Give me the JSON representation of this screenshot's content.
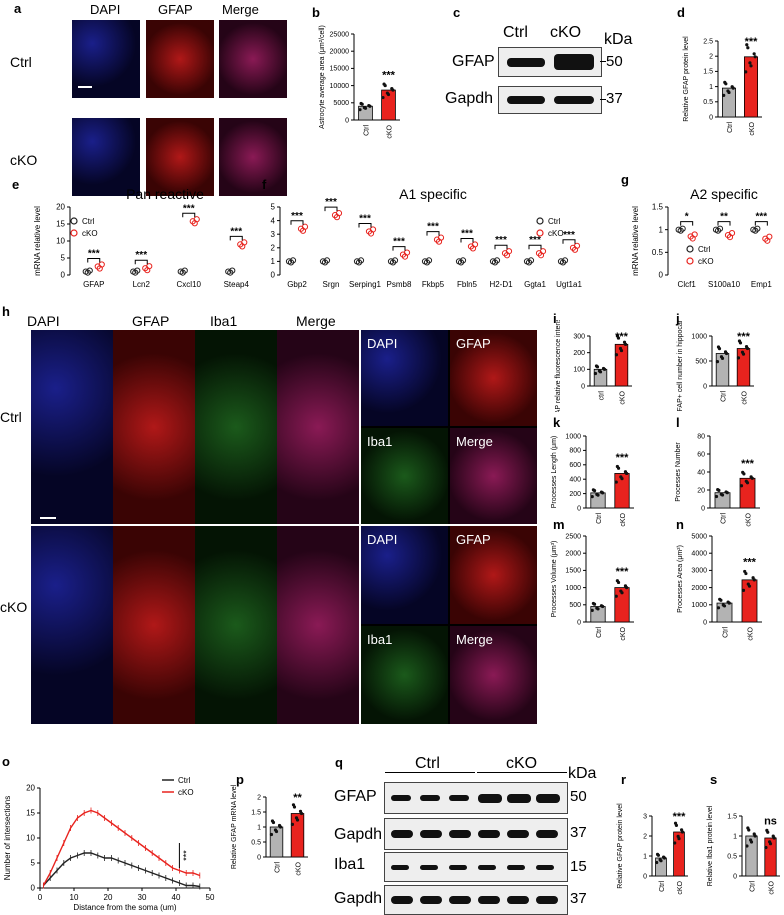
{
  "panels": {
    "a": "a",
    "b": "b",
    "c": "c",
    "d": "d",
    "e": "e",
    "f": "f",
    "g": "g",
    "h": "h",
    "i": "i",
    "j": "j",
    "k": "k",
    "l": "l",
    "m": "m",
    "n": "n",
    "o": "o",
    "p": "p",
    "q": "q",
    "r": "r",
    "s": "s"
  },
  "groups": {
    "ctrl": "Ctrl",
    "cko": "cKO",
    "ctrl_lower": "ctrl",
    "cko_lower": "cKO"
  },
  "channels": {
    "dapi": "DAPI",
    "gfap": "GFAP",
    "merge": "Merge",
    "iba1": "Iba1",
    "gapdh": "Gapdh"
  },
  "blot": {
    "kda": "kDa",
    "mw50": "50",
    "mw37": "37",
    "mw15": "15"
  },
  "titles": {
    "pan": "Pan reactive",
    "a1": "A1 specific",
    "a2": "A2 specific"
  },
  "colors": {
    "ctrl_bar": "#b3b3b3",
    "cko_bar": "#e8231e",
    "ctrl_line": "#222222",
    "cko_line": "#e8231e"
  },
  "sig": {
    "three": "***",
    "two": "**",
    "one": "*",
    "ns": "ns"
  },
  "chart_data": [
    {
      "id": "b",
      "type": "bar",
      "ylabel": "Astrocyte average area (μm²/cell)",
      "categories": [
        "Ctrl",
        "cKO"
      ],
      "values": [
        4000,
        8700
      ],
      "ylim": [
        0,
        25000
      ],
      "yticks": [
        0,
        5000,
        10000,
        15000,
        20000,
        25000
      ],
      "sig": "***"
    },
    {
      "id": "d",
      "type": "bar",
      "ylabel": "Relative GFAP protein level",
      "categories": [
        "Ctrl",
        "cKO"
      ],
      "values": [
        0.95,
        1.98
      ],
      "ylim": [
        0,
        2.5
      ],
      "yticks": [
        0.0,
        0.5,
        1.0,
        1.5,
        2.0,
        2.5
      ],
      "sig": "***"
    },
    {
      "id": "e",
      "type": "scatter",
      "title": "Pan reactive",
      "ylabel": "mRNA relative level",
      "categories": [
        "GFAP",
        "Lcn2",
        "Cxcl10",
        "Steap4"
      ],
      "series": [
        {
          "name": "Ctrl",
          "values": [
            1,
            1,
            1,
            1
          ]
        },
        {
          "name": "cKO",
          "values": [
            2.5,
            2,
            15.8,
            9
          ]
        }
      ],
      "ylim": [
        0,
        20
      ],
      "yticks": [
        0,
        5,
        10,
        15,
        20
      ],
      "sig": [
        "***",
        "***",
        "***",
        "***"
      ]
    },
    {
      "id": "f",
      "type": "scatter",
      "title": "A1 specific",
      "ylabel": "mRNA relative level",
      "categories": [
        "Gbp2",
        "Srgn",
        "Serping1",
        "Psmb8",
        "Fkbp5",
        "Fbln5",
        "H2-D1",
        "Ggta1",
        "Ugt1a1"
      ],
      "series": [
        {
          "name": "Ctrl",
          "values": [
            1,
            1,
            1,
            1,
            1,
            1,
            1,
            1,
            1
          ]
        },
        {
          "name": "cKO",
          "values": [
            3.4,
            4.4,
            3.2,
            1.5,
            2.6,
            2.1,
            1.6,
            1.6,
            2
          ]
        }
      ],
      "ylim": [
        0,
        5
      ],
      "yticks": [
        0,
        1,
        2,
        3,
        4,
        5
      ],
      "sig": [
        "***",
        "***",
        "***",
        "***",
        "***",
        "***",
        "***",
        "***",
        "***"
      ]
    },
    {
      "id": "g",
      "type": "scatter",
      "title": "A2 specific",
      "ylabel": "mRNA relative level",
      "categories": [
        "Clcf1",
        "S100a10",
        "Emp1"
      ],
      "series": [
        {
          "name": "Ctrl",
          "values": [
            1,
            1,
            1
          ]
        },
        {
          "name": "cKO",
          "values": [
            0.85,
            0.88,
            0.8
          ]
        }
      ],
      "ylim": [
        0,
        1.5
      ],
      "yticks": [
        0.0,
        0.5,
        1.0,
        1.5
      ],
      "sig": [
        "*",
        "**",
        "***"
      ]
    },
    {
      "id": "i",
      "type": "bar",
      "ylabel": "GFAP relative fluorescence intensity (%)",
      "categories": [
        "ctrl",
        "cKO"
      ],
      "values": [
        100,
        250
      ],
      "ylim": [
        0,
        300
      ],
      "yticks": [
        0,
        100,
        200,
        300
      ],
      "sig": "***"
    },
    {
      "id": "j",
      "type": "bar",
      "ylabel": "GFAP+ cell number in hippocampus",
      "categories": [
        "Ctrl",
        "cKO"
      ],
      "values": [
        650,
        750
      ],
      "ylim": [
        0,
        1000
      ],
      "yticks": [
        0,
        500,
        1000
      ],
      "sig": "***"
    },
    {
      "id": "k",
      "type": "bar",
      "ylabel": "Processes Length (μm)",
      "categories": [
        "Ctrl",
        "cKO"
      ],
      "values": [
        210,
        480
      ],
      "ylim": [
        0,
        1000
      ],
      "yticks": [
        0,
        200,
        400,
        600,
        800,
        1000
      ],
      "sig": "***"
    },
    {
      "id": "l",
      "type": "bar",
      "ylabel": "Processes Number",
      "categories": [
        "Ctrl",
        "cKO"
      ],
      "values": [
        17,
        33
      ],
      "ylim": [
        0,
        80
      ],
      "yticks": [
        0,
        20,
        40,
        60,
        80
      ],
      "sig": "***"
    },
    {
      "id": "m",
      "type": "bar",
      "ylabel": "Processes Volume (μm³)",
      "categories": [
        "Ctrl",
        "cKO"
      ],
      "values": [
        450,
        1000
      ],
      "ylim": [
        0,
        2500
      ],
      "yticks": [
        0,
        500,
        1000,
        1500,
        2000,
        2500
      ],
      "sig": "***"
    },
    {
      "id": "n",
      "type": "bar",
      "ylabel": "Processes Area (μm²)",
      "categories": [
        "Ctrl",
        "cKO"
      ],
      "values": [
        1100,
        2450
      ],
      "ylim": [
        0,
        5000
      ],
      "yticks": [
        0,
        1000,
        2000,
        3000,
        4000,
        5000
      ],
      "sig": "***"
    },
    {
      "id": "o",
      "type": "line",
      "xlabel": "Distance from the soma (um)",
      "ylabel": "Number of intersections",
      "series": [
        {
          "name": "Ctrl",
          "x": [
            1,
            3,
            5,
            7,
            9,
            11,
            13,
            15,
            17,
            19,
            21,
            23,
            25,
            27,
            29,
            31,
            33,
            35,
            37,
            39,
            41,
            43,
            45,
            47
          ],
          "values": [
            0.5,
            2,
            3.5,
            5,
            6,
            6.5,
            7,
            7,
            6.5,
            6,
            6,
            5.5,
            5,
            4.5,
            4,
            3.5,
            3,
            2.5,
            2,
            1.5,
            1,
            0.5,
            0.5,
            0.3
          ]
        },
        {
          "name": "cKO",
          "x": [
            1,
            3,
            5,
            7,
            9,
            11,
            13,
            15,
            17,
            19,
            21,
            23,
            25,
            27,
            29,
            31,
            33,
            35,
            37,
            39,
            41,
            43,
            45,
            47
          ],
          "values": [
            0.5,
            3,
            6,
            9,
            12,
            14,
            15,
            15.5,
            15,
            14,
            13,
            12,
            11,
            10,
            9,
            8,
            7,
            6,
            5,
            4,
            3.5,
            3,
            3,
            2.5
          ]
        }
      ],
      "xlim": [
        0,
        50
      ],
      "ylim": [
        0,
        20
      ],
      "xticks": [
        0,
        10,
        20,
        30,
        40,
        50
      ],
      "yticks": [
        0,
        5,
        10,
        15,
        20
      ],
      "sig": "***"
    },
    {
      "id": "p",
      "type": "bar",
      "ylabel": "Relative GFAP mRNA level",
      "categories": [
        "Ctrl",
        "cKO"
      ],
      "values": [
        1,
        1.45
      ],
      "ylim": [
        0,
        2
      ],
      "yticks": [
        0.0,
        0.5,
        1.0,
        1.5,
        2.0
      ],
      "sig": "**"
    },
    {
      "id": "r",
      "type": "bar",
      "ylabel": "Relative GFAP protein level",
      "categories": [
        "Ctrl",
        "cKO"
      ],
      "values": [
        0.9,
        2.2
      ],
      "ylim": [
        0,
        3
      ],
      "yticks": [
        0,
        1,
        2,
        3
      ],
      "sig": "***"
    },
    {
      "id": "s",
      "type": "bar",
      "ylabel": "Relative Iba1 protein level",
      "categories": [
        "Ctrl",
        "cKO"
      ],
      "values": [
        1,
        0.95
      ],
      "ylim": [
        0,
        1.5
      ],
      "yticks": [
        0.0,
        0.5,
        1.0,
        1.5
      ],
      "sig": "ns"
    }
  ]
}
